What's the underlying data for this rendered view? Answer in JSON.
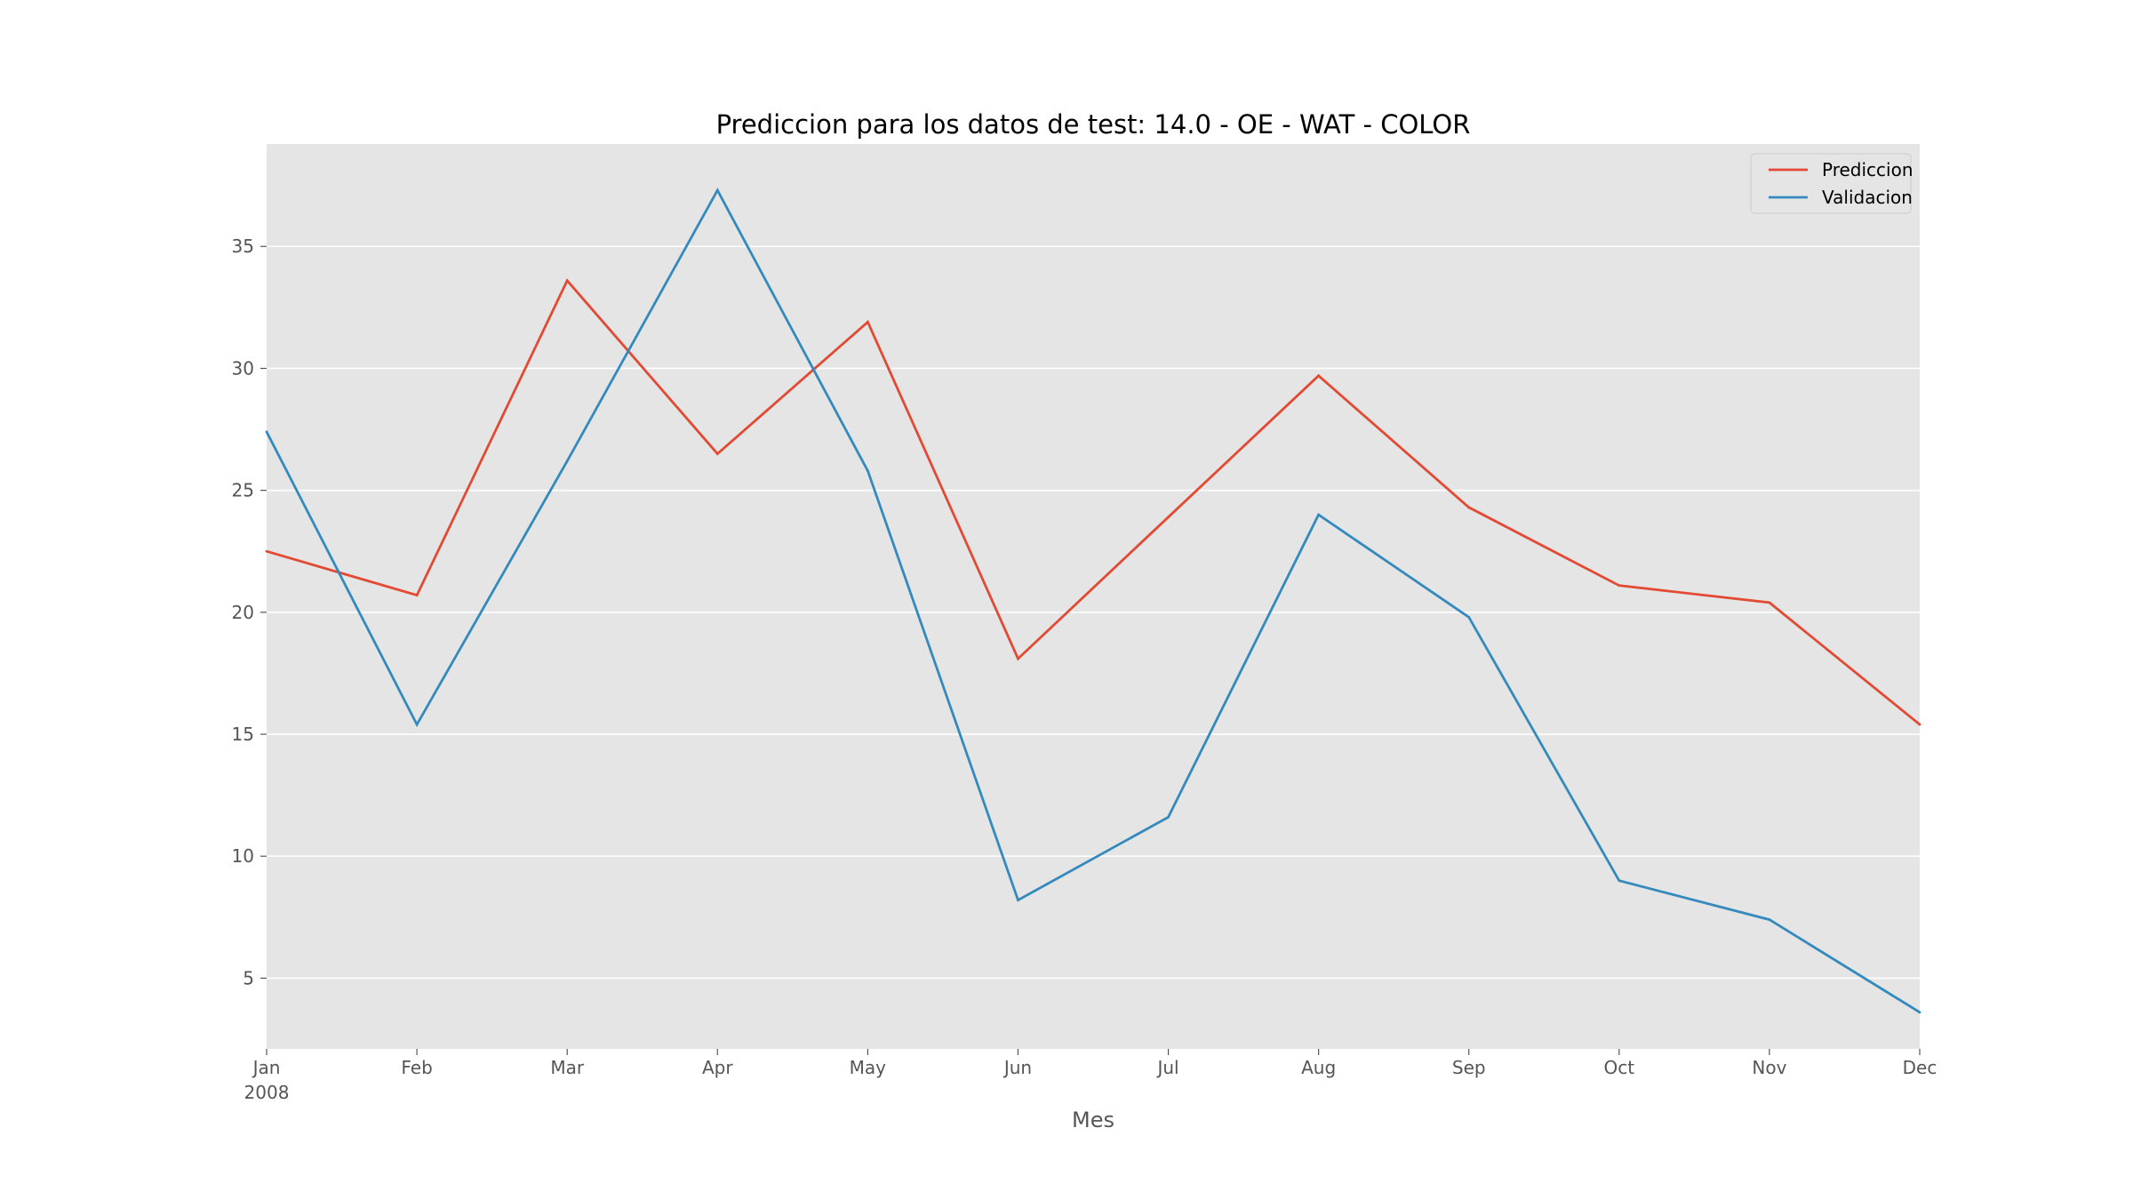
{
  "chart_data": {
    "type": "line",
    "title": "Prediccion para los datos de test: 14.0 - OE - WAT - COLOR",
    "xlabel": "Mes",
    "ylabel": "",
    "x": [
      "2008-01",
      "2008-02",
      "2008-03",
      "2008-04",
      "2008-05",
      "2008-06",
      "2008-07",
      "2008-08",
      "2008-09",
      "2008-10",
      "2008-11",
      "2008-12"
    ],
    "x_tick_labels": [
      "Jan",
      "Feb",
      "Mar",
      "Apr",
      "May",
      "Jun",
      "Jul",
      "Aug",
      "Sep",
      "Oct",
      "Nov",
      "Dec"
    ],
    "x_tick_year": "2008",
    "ylim": [
      2.1,
      39.2
    ],
    "y_ticks": [
      5,
      10,
      15,
      20,
      25,
      30,
      35
    ],
    "grid": true,
    "legend_position": "top-right",
    "series": [
      {
        "name": "Prediccion",
        "color": "#E24A33",
        "values": [
          22.5,
          20.7,
          33.6,
          26.5,
          31.9,
          18.1,
          23.9,
          29.7,
          24.3,
          21.1,
          20.4,
          15.4
        ]
      },
      {
        "name": "Validacion",
        "color": "#348ABD",
        "values": [
          27.4,
          15.4,
          26.2,
          37.3,
          25.8,
          8.2,
          11.6,
          24.0,
          19.8,
          9.0,
          7.4,
          3.6
        ]
      }
    ]
  }
}
